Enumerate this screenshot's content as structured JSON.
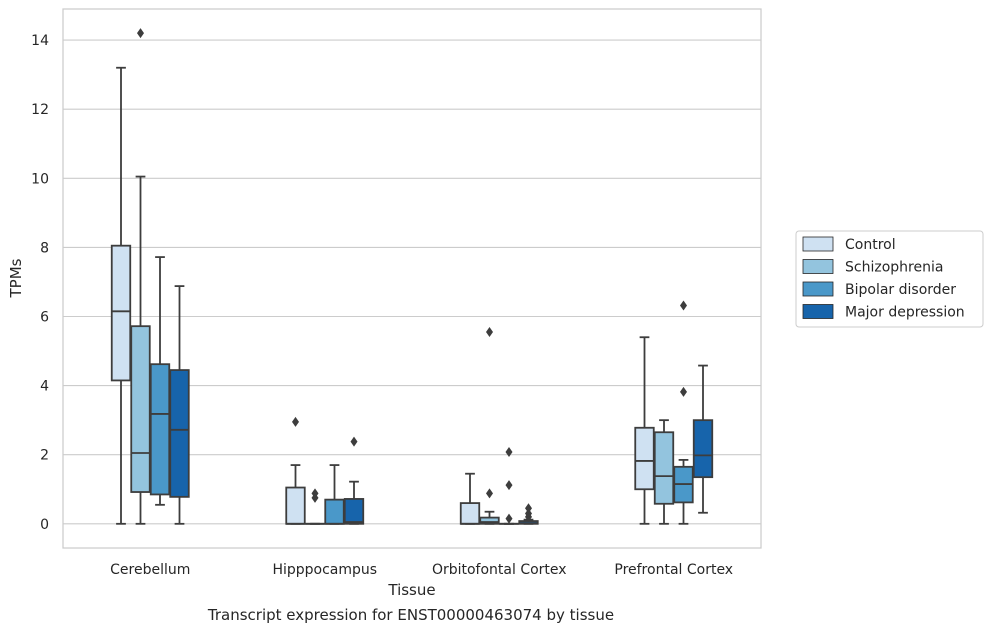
{
  "chart_data": {
    "type": "box",
    "xlabel": "Tissue",
    "ylabel": "TPMs",
    "caption": "Transcript expression for ENST00000463074 by tissue",
    "ylim": [
      -0.7,
      14.9
    ],
    "yticks": [
      0,
      2,
      4,
      6,
      8,
      10,
      12,
      14
    ],
    "grid": "horizontal",
    "legend_position": "right",
    "categories": [
      "Cerebellum",
      "Hipppocampus",
      "Orbitofontal Cortex",
      "Prefrontal Cortex"
    ],
    "series": [
      {
        "name": "Control",
        "color": "#cfe1f2",
        "boxes": [
          {
            "whislo": 0,
            "q1": 4.15,
            "med": 6.15,
            "q3": 8.05,
            "whishi": 13.2,
            "fliers": []
          },
          {
            "whislo": 0,
            "q1": 0,
            "med": 0,
            "q3": 1.05,
            "whishi": 1.7,
            "fliers": [
              2.95
            ]
          },
          {
            "whislo": 0,
            "q1": 0,
            "med": 0,
            "q3": 0.6,
            "whishi": 1.45,
            "fliers": []
          },
          {
            "whislo": 0,
            "q1": 1.0,
            "med": 1.82,
            "q3": 2.78,
            "whishi": 5.4,
            "fliers": []
          }
        ]
      },
      {
        "name": "Schizophrenia",
        "color": "#93c4de",
        "boxes": [
          {
            "whislo": 0,
            "q1": 0.92,
            "med": 2.05,
            "q3": 5.72,
            "whishi": 10.05,
            "fliers": [
              14.2
            ]
          },
          {
            "whislo": 0,
            "q1": 0,
            "med": 0,
            "q3": 0,
            "whishi": 0,
            "fliers": [
              0.75,
              0.88
            ]
          },
          {
            "whislo": 0,
            "q1": 0,
            "med": 0.05,
            "q3": 0.18,
            "whishi": 0.35,
            "fliers": [
              0.88,
              5.55
            ]
          },
          {
            "whislo": 0,
            "q1": 0.58,
            "med": 1.38,
            "q3": 2.65,
            "whishi": 3.0,
            "fliers": []
          }
        ]
      },
      {
        "name": "Bipolar disorder",
        "color": "#4a98c9",
        "boxes": [
          {
            "whislo": 0.55,
            "q1": 0.85,
            "med": 3.18,
            "q3": 4.62,
            "whishi": 7.72,
            "fliers": []
          },
          {
            "whislo": 0,
            "q1": 0,
            "med": 0,
            "q3": 0.7,
            "whishi": 1.7,
            "fliers": []
          },
          {
            "whislo": 0,
            "q1": 0,
            "med": 0,
            "q3": 0,
            "whishi": 0,
            "fliers": [
              0.15,
              1.12,
              2.08
            ]
          },
          {
            "whislo": 0,
            "q1": 0.62,
            "med": 1.15,
            "q3": 1.65,
            "whishi": 1.85,
            "fliers": [
              3.82,
              6.32
            ]
          }
        ]
      },
      {
        "name": "Major depression",
        "color": "#1764ab",
        "boxes": [
          {
            "whislo": 0,
            "q1": 0.78,
            "med": 2.72,
            "q3": 4.45,
            "whishi": 6.88,
            "fliers": []
          },
          {
            "whislo": 0,
            "q1": 0,
            "med": 0.05,
            "q3": 0.72,
            "whishi": 1.22,
            "fliers": [
              2.38
            ]
          },
          {
            "whislo": 0,
            "q1": 0,
            "med": 0.02,
            "q3": 0.08,
            "whishi": 0.12,
            "fliers": [
              0.2,
              0.3,
              0.45
            ]
          },
          {
            "whislo": 0.32,
            "q1": 1.35,
            "med": 1.98,
            "q3": 3.0,
            "whishi": 4.58,
            "fliers": []
          }
        ]
      }
    ]
  }
}
